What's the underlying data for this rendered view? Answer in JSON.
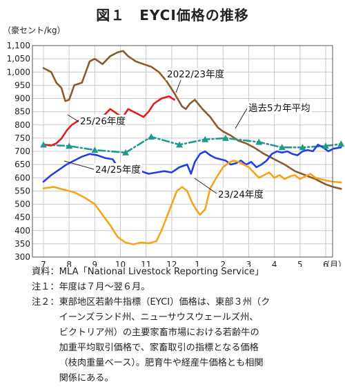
{
  "title": "図１　EYCI価格の推移",
  "chart_data": {
    "type": "line",
    "unit_label": "（豪セント/kg）",
    "x_unit": "（月）",
    "x_ticks": [
      "7",
      "8",
      "9",
      "10",
      "11",
      "12",
      "1",
      "2",
      "3",
      "4",
      "5",
      "6"
    ],
    "y_ticks": [
      "1,100",
      "1,050",
      "1,000",
      "950",
      "900",
      "850",
      "800",
      "750",
      "700",
      "650",
      "600",
      "550",
      "500",
      "450",
      "400",
      "350",
      "300"
    ],
    "ylim": [
      300,
      1100
    ],
    "grid": true,
    "series": [
      {
        "name": "2022/23年度",
        "color": "#8b5a2b",
        "dash": "",
        "values": [
          [
            0,
            1015
          ],
          [
            0.3,
            1000
          ],
          [
            0.5,
            960
          ],
          [
            0.7,
            940
          ],
          [
            0.85,
            890
          ],
          [
            1.0,
            895
          ],
          [
            1.2,
            950
          ],
          [
            1.5,
            960
          ],
          [
            1.8,
            1040
          ],
          [
            2.0,
            1050
          ],
          [
            2.3,
            1030
          ],
          [
            2.6,
            1060
          ],
          [
            2.9,
            1075
          ],
          [
            3.1,
            1080
          ],
          [
            3.3,
            1060
          ],
          [
            3.6,
            1040
          ],
          [
            3.9,
            1030
          ],
          [
            4.2,
            1020
          ],
          [
            4.5,
            1000
          ],
          [
            4.8,
            965
          ],
          [
            5.1,
            920
          ],
          [
            5.4,
            870
          ],
          [
            5.55,
            860
          ],
          [
            5.7,
            880
          ],
          [
            5.9,
            895
          ],
          [
            6.2,
            860
          ],
          [
            6.5,
            830
          ],
          [
            6.8,
            790
          ],
          [
            7.0,
            775
          ],
          [
            7.3,
            760
          ],
          [
            7.6,
            740
          ],
          [
            7.9,
            730
          ],
          [
            8.2,
            715
          ],
          [
            8.6,
            690
          ],
          [
            9.0,
            670
          ],
          [
            9.4,
            650
          ],
          [
            9.8,
            625
          ],
          [
            10.2,
            610
          ],
          [
            10.6,
            595
          ],
          [
            11.0,
            575
          ],
          [
            11.3,
            565
          ],
          [
            11.6,
            558
          ]
        ]
      },
      {
        "name": "過去5カ年平均",
        "color": "#1e9a8e",
        "dash": "10,4,2,4",
        "marker": "triangle",
        "values": [
          [
            0,
            725
          ],
          [
            1.0,
            720
          ],
          [
            2.0,
            705
          ],
          [
            3.2,
            695
          ],
          [
            4.2,
            755
          ],
          [
            5.3,
            725
          ],
          [
            6.3,
            745
          ],
          [
            7.1,
            750
          ],
          [
            8.4,
            735
          ],
          [
            9.3,
            715
          ],
          [
            10.1,
            715
          ],
          [
            11.0,
            720
          ],
          [
            11.6,
            728
          ]
        ]
      },
      {
        "name": "25/26年度",
        "color": "#e41c1c",
        "dash": "",
        "values": [
          [
            0,
            725
          ],
          [
            0.3,
            722
          ],
          [
            0.5,
            730
          ],
          [
            0.7,
            748
          ],
          [
            0.9,
            778
          ],
          [
            1.1,
            800
          ],
          [
            1.4,
            818
          ],
          [
            1.7,
            800
          ],
          [
            2.0,
            815
          ],
          [
            2.3,
            830
          ],
          [
            2.6,
            860
          ],
          [
            2.9,
            840
          ],
          [
            3.1,
            830
          ],
          [
            3.3,
            860
          ],
          [
            3.6,
            845
          ],
          [
            3.9,
            830
          ],
          [
            4.1,
            850
          ],
          [
            4.3,
            880
          ],
          [
            4.6,
            900
          ],
          [
            4.9,
            908
          ],
          [
            5.1,
            895
          ]
        ]
      },
      {
        "name": "24/25年度",
        "color": "#1f3fe6",
        "dash": "",
        "values": [
          [
            0,
            585
          ],
          [
            0.3,
            610
          ],
          [
            0.6,
            630
          ],
          [
            0.9,
            650
          ],
          [
            1.2,
            665
          ],
          [
            1.5,
            680
          ],
          [
            1.8,
            690
          ],
          [
            2.1,
            685
          ],
          [
            2.4,
            675
          ],
          [
            2.7,
            670
          ],
          [
            2.9,
            640
          ],
          [
            3.2,
            625
          ],
          [
            3.5,
            620
          ],
          [
            3.8,
            625
          ],
          [
            4.1,
            615
          ],
          [
            4.4,
            620
          ],
          [
            4.7,
            625
          ],
          [
            5.0,
            620
          ],
          [
            5.3,
            640
          ],
          [
            5.6,
            650
          ],
          [
            5.75,
            615
          ],
          [
            5.9,
            660
          ],
          [
            6.1,
            690
          ],
          [
            6.3,
            700
          ],
          [
            6.5,
            685
          ],
          [
            6.7,
            675
          ],
          [
            6.9,
            670
          ],
          [
            7.1,
            665
          ],
          [
            7.3,
            650
          ],
          [
            7.5,
            655
          ],
          [
            7.7,
            665
          ],
          [
            7.9,
            650
          ],
          [
            8.1,
            660
          ],
          [
            8.3,
            640
          ],
          [
            8.5,
            650
          ],
          [
            8.7,
            665
          ],
          [
            8.9,
            690
          ],
          [
            9.1,
            700
          ],
          [
            9.3,
            695
          ],
          [
            9.5,
            700
          ],
          [
            9.7,
            690
          ],
          [
            9.9,
            685
          ],
          [
            10.1,
            700
          ],
          [
            10.3,
            705
          ],
          [
            10.5,
            700
          ],
          [
            10.7,
            725
          ],
          [
            10.9,
            715
          ],
          [
            11.1,
            700
          ],
          [
            11.3,
            710
          ],
          [
            11.6,
            715
          ]
        ]
      },
      {
        "name": "23/24年度",
        "color": "#f7a21b",
        "dash": "",
        "values": [
          [
            0,
            560
          ],
          [
            0.4,
            565
          ],
          [
            0.8,
            555
          ],
          [
            1.2,
            545
          ],
          [
            1.6,
            525
          ],
          [
            2.0,
            500
          ],
          [
            2.3,
            460
          ],
          [
            2.6,
            420
          ],
          [
            2.9,
            375
          ],
          [
            3.2,
            355
          ],
          [
            3.5,
            348
          ],
          [
            3.8,
            355
          ],
          [
            4.1,
            352
          ],
          [
            4.4,
            360
          ],
          [
            4.6,
            400
          ],
          [
            4.8,
            450
          ],
          [
            5.0,
            500
          ],
          [
            5.2,
            550
          ],
          [
            5.4,
            565
          ],
          [
            5.6,
            550
          ],
          [
            5.8,
            505
          ],
          [
            5.95,
            480
          ],
          [
            6.1,
            460
          ],
          [
            6.3,
            480
          ],
          [
            6.5,
            560
          ],
          [
            6.8,
            610
          ],
          [
            7.0,
            640
          ],
          [
            7.2,
            655
          ],
          [
            7.4,
            665
          ],
          [
            7.6,
            660
          ],
          [
            7.8,
            650
          ],
          [
            8.0,
            640
          ],
          [
            8.2,
            620
          ],
          [
            8.4,
            600
          ],
          [
            8.6,
            610
          ],
          [
            8.8,
            620
          ],
          [
            9.0,
            600
          ],
          [
            9.2,
            610
          ],
          [
            9.4,
            595
          ],
          [
            9.6,
            605
          ],
          [
            9.8,
            610
          ],
          [
            10.0,
            595
          ],
          [
            10.2,
            605
          ],
          [
            10.4,
            615
          ],
          [
            10.6,
            600
          ],
          [
            10.8,
            595
          ],
          [
            11.0,
            590
          ],
          [
            11.3,
            585
          ],
          [
            11.6,
            582
          ]
        ]
      }
    ],
    "annotations": [
      {
        "text": "2022/23年度",
        "series": "2022/23年度"
      },
      {
        "text": "過去5カ年平均",
        "series": "過去5カ年平均"
      },
      {
        "text": "25/26年度",
        "series": "25/26年度"
      },
      {
        "text": "24/25年度",
        "series": "24/25年度"
      },
      {
        "text": "23/24年度",
        "series": "23/24年度"
      }
    ]
  },
  "notes": {
    "source_label": "資料：",
    "source_text": "MLA「National Livestock Reporting Service」",
    "note1_label": "注１：",
    "note1_text": "年度は７月～翌６月。",
    "note2_label": "注２：",
    "note2_lines": [
      "東部地区若齢牛指標（EYCI）価格は、東部３州（ク",
      "イーンズランド州、ニューサウスウェールズ州、",
      "ビクトリア州）の主要家畜市場における若齢牛の",
      "加重平均取引価格で、家畜取引の指標となる価格",
      "（枝肉重量ベース）。肥育牛や経産牛価格とも相関",
      "関係にある。"
    ]
  }
}
